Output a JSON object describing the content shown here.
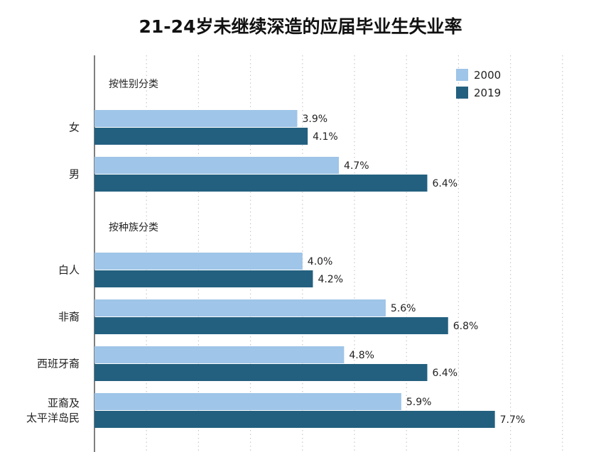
{
  "chart_data": {
    "type": "bar",
    "orientation": "horizontal",
    "title": "21-24岁未继续深造的应届毕业生失业率",
    "legend": {
      "position": "top-right"
    },
    "grid": true,
    "xlim": [
      0,
      9.5
    ],
    "series": [
      {
        "name": "2000",
        "color": "#9fc5e8"
      },
      {
        "name": "2019",
        "color": "#23607f"
      }
    ],
    "groups": [
      {
        "label": "按性别分类",
        "categories": [
          {
            "label": [
              "女"
            ],
            "values": [
              3.9,
              4.1
            ],
            "value_labels": [
              "3.9%",
              "4.1%"
            ]
          },
          {
            "label": [
              "男"
            ],
            "values": [
              4.7,
              6.4
            ],
            "value_labels": [
              "4.7%",
              "6.4%"
            ]
          }
        ]
      },
      {
        "label": "按种族分类",
        "categories": [
          {
            "label": [
              "白人"
            ],
            "values": [
              4.0,
              4.2
            ],
            "value_labels": [
              "4.0%",
              "4.2%"
            ]
          },
          {
            "label": [
              "非裔"
            ],
            "values": [
              5.6,
              6.8
            ],
            "value_labels": [
              "5.6%",
              "6.8%"
            ]
          },
          {
            "label": [
              "西班牙裔"
            ],
            "values": [
              4.8,
              6.4
            ],
            "value_labels": [
              "4.8%",
              "6.4%"
            ]
          },
          {
            "label": [
              "亚裔及",
              "太平洋岛民"
            ],
            "values": [
              5.9,
              7.7
            ],
            "value_labels": [
              "5.9%",
              "7.7%"
            ]
          }
        ]
      }
    ]
  }
}
